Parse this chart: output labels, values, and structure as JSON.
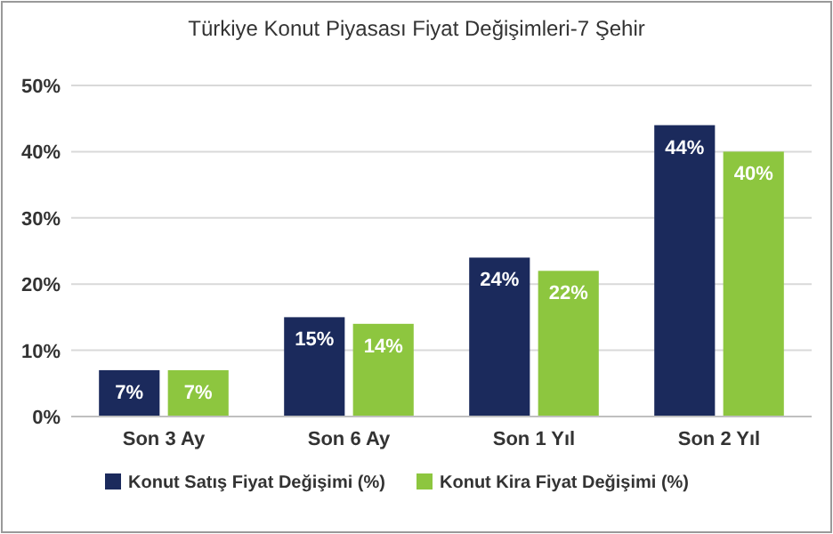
{
  "chart_data": {
    "type": "bar",
    "title": "Türkiye Konut Piyasası Fiyat Değişimleri-7 Şehir",
    "categories": [
      "Son 3 Ay",
      "Son 6 Ay",
      "Son 1 Yıl",
      "Son 2 Yıl"
    ],
    "series": [
      {
        "name": "Konut Satış Fiyat Değişimi (%)",
        "color": "#1b2a5c",
        "values": [
          7,
          15,
          24,
          44
        ],
        "value_labels": [
          "7%",
          "15%",
          "24%",
          "44%"
        ]
      },
      {
        "name": "Konut Kira Fiyat Değişimi (%)",
        "color": "#8dc63f",
        "values": [
          7,
          14,
          22,
          40
        ],
        "value_labels": [
          "7%",
          "14%",
          "22%",
          "40%"
        ]
      }
    ],
    "ylim": [
      0,
      50
    ],
    "yticks": [
      {
        "value": 0,
        "label": "0%"
      },
      {
        "value": 10,
        "label": "10%"
      },
      {
        "value": 20,
        "label": "20%"
      },
      {
        "value": 30,
        "label": "30%"
      },
      {
        "value": 40,
        "label": "40%"
      },
      {
        "value": 50,
        "label": "50%"
      }
    ],
    "grid": "y",
    "legend": "bottom"
  }
}
